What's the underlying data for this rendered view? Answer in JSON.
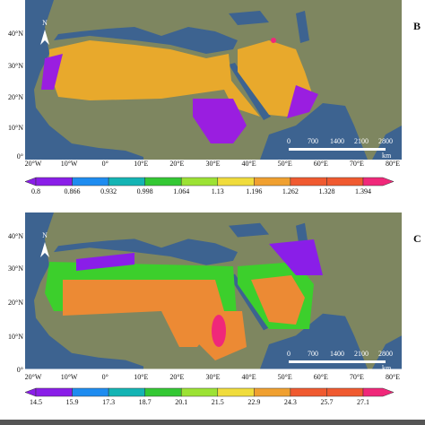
{
  "panels": [
    {
      "label": "B",
      "north": "N",
      "lat_labels": [
        "40°N",
        "30°N",
        "20°N",
        "10°N",
        "0°"
      ],
      "lon_labels": [
        "20°W",
        "10°W",
        "0°",
        "10°E",
        "20°E",
        "30°E",
        "40°E",
        "50°E",
        "60°E",
        "70°E",
        "80°E"
      ],
      "scale_labels": [
        "0",
        "700",
        "1400",
        "2100",
        "2800"
      ],
      "scale_unit": "km",
      "legend_labels": [
        "0.8",
        "0.866",
        "0.932",
        "0.998",
        "1.064",
        "1.13",
        "1.196",
        "1.262",
        "1.328",
        "1.394"
      ]
    },
    {
      "label": "C",
      "north": "N",
      "lat_labels": [
        "40°N",
        "30°N",
        "20°N",
        "10°N",
        "0°"
      ],
      "lon_labels": [
        "20°W",
        "10°W",
        "0°",
        "10°E",
        "20°E",
        "30°E",
        "40°E",
        "50°E",
        "60°E",
        "70°E",
        "80°E"
      ],
      "scale_labels": [
        "0",
        "700",
        "1400",
        "2100",
        "2800"
      ],
      "scale_unit": "km",
      "legend_labels": [
        "14.5",
        "15.9",
        "17.3",
        "18.7",
        "20.1",
        "21.5",
        "22.9",
        "24.3",
        "25.7",
        "27.1"
      ]
    }
  ]
}
